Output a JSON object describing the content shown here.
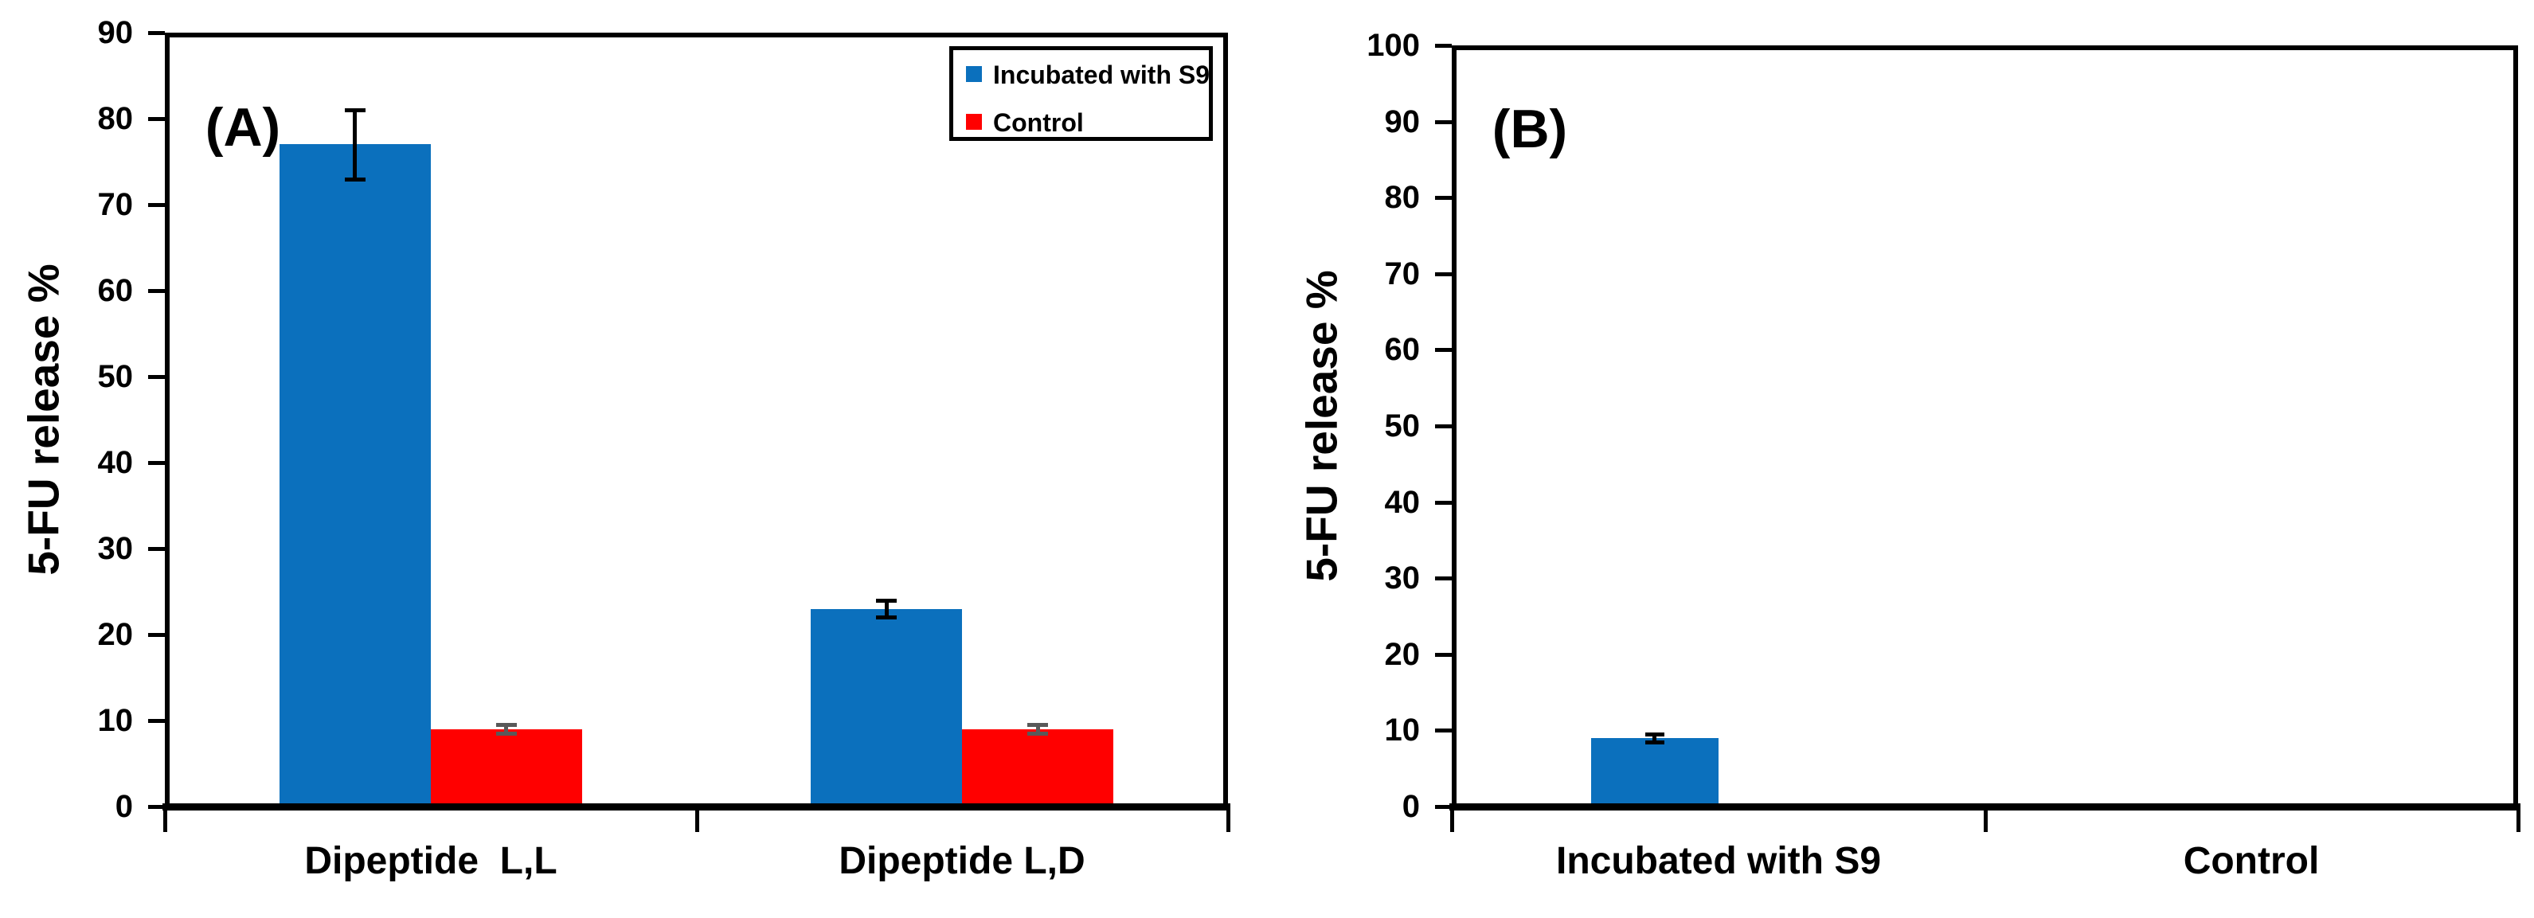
{
  "figure": {
    "background_color": "#ffffff",
    "axis_color": "#000000"
  },
  "chart_data": [
    {
      "type": "bar",
      "panel_label": "(A)",
      "ylabel": "5-FU release %",
      "xlabel": "",
      "ylim": [
        0,
        90
      ],
      "yticks": [
        0,
        10,
        20,
        30,
        40,
        50,
        60,
        70,
        80,
        90
      ],
      "grid": false,
      "categories": [
        "Dipeptide  L,L",
        "Dipeptide L,D"
      ],
      "series": [
        {
          "name": "Incubated with S9",
          "color": "#0b70bd",
          "values": [
            77,
            23
          ],
          "errors": [
            4,
            1
          ],
          "error_color": "#000000"
        },
        {
          "name": "Control",
          "color": "#ff0000",
          "values": [
            9,
            9
          ],
          "errors": [
            0.5,
            0.5
          ],
          "error_color": "#595959"
        }
      ],
      "legend": {
        "visible": true,
        "position": "top-right",
        "entries": [
          "Incubated with S9",
          "Control"
        ]
      }
    },
    {
      "type": "bar",
      "panel_label": "(B)",
      "ylabel": "5-FU release %",
      "xlabel": "",
      "ylim": [
        0,
        100
      ],
      "yticks": [
        0,
        10,
        20,
        30,
        40,
        50,
        60,
        70,
        80,
        90,
        100
      ],
      "grid": false,
      "categories": [
        "Incubated with S9",
        "Control"
      ],
      "series": [
        {
          "name": "Incubated with S9",
          "color": "#0b70bd",
          "values": [
            9,
            null
          ],
          "errors": [
            0.5,
            null
          ],
          "error_color": "#000000"
        }
      ],
      "legend": {
        "visible": false,
        "position": "",
        "entries": []
      }
    }
  ]
}
